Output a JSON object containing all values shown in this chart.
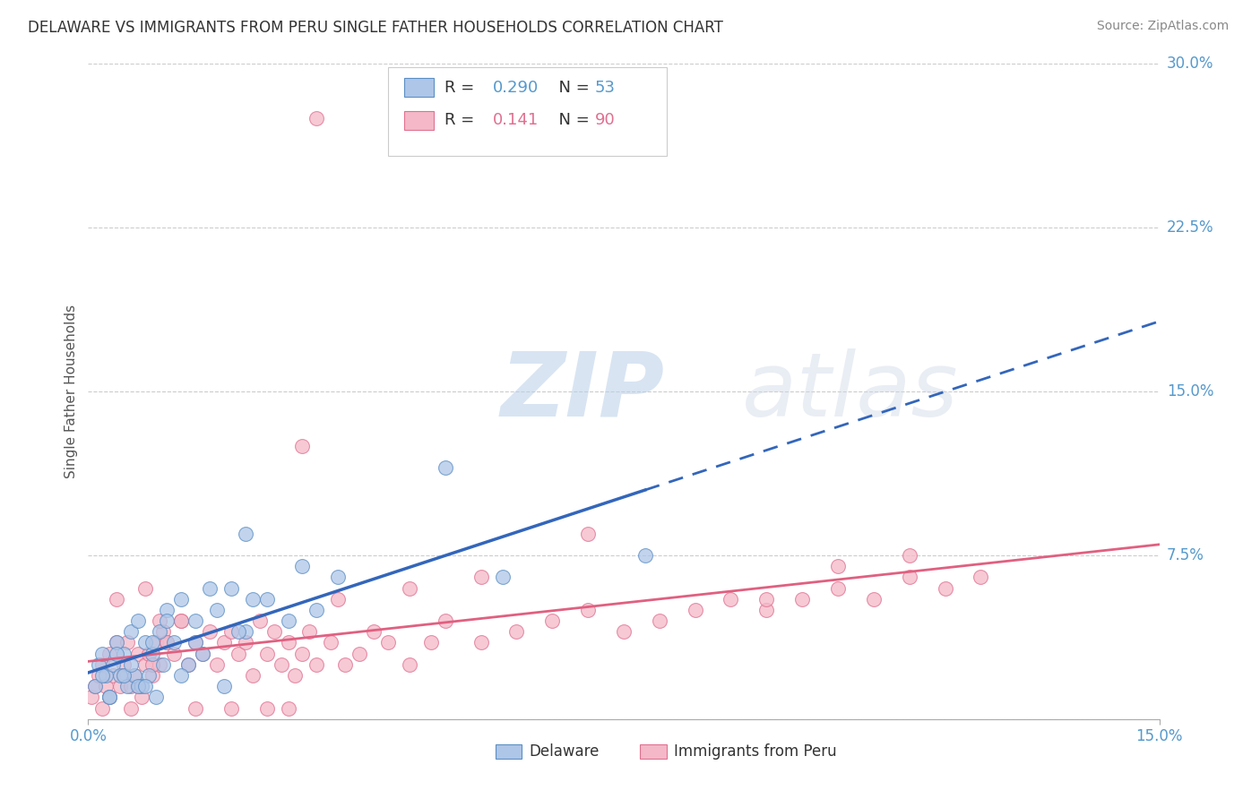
{
  "title": "DELAWARE VS IMMIGRANTS FROM PERU SINGLE FATHER HOUSEHOLDS CORRELATION CHART",
  "source": "Source: ZipAtlas.com",
  "ylabel": "Single Father Households",
  "xlim": [
    0.0,
    15.0
  ],
  "ylim": [
    0.0,
    30.0
  ],
  "ytick_vals": [
    0.0,
    7.5,
    15.0,
    22.5,
    30.0
  ],
  "ytick_labels": [
    "",
    "7.5%",
    "15.0%",
    "22.5%",
    "30.0%"
  ],
  "xtick_vals": [
    0.0,
    15.0
  ],
  "xtick_labels": [
    "0.0%",
    "15.0%"
  ],
  "legend_r_blue": "0.290",
  "legend_n_blue": "53",
  "legend_r_pink": "0.141",
  "legend_n_pink": "90",
  "blue_fill": "#aec6e8",
  "blue_edge": "#5b8ec4",
  "pink_fill": "#f4b8c8",
  "pink_edge": "#e07090",
  "trend_blue_color": "#3366bb",
  "trend_pink_color": "#e06080",
  "grid_color": "#cccccc",
  "watermark_zip": "ZIP",
  "watermark_atlas": "atlas",
  "bg": "#ffffff",
  "blue_x": [
    0.1,
    0.15,
    0.2,
    0.25,
    0.3,
    0.35,
    0.4,
    0.45,
    0.5,
    0.55,
    0.6,
    0.65,
    0.7,
    0.75,
    0.8,
    0.85,
    0.9,
    0.95,
    1.0,
    1.05,
    1.1,
    1.2,
    1.3,
    1.4,
    1.5,
    1.6,
    1.8,
    2.0,
    2.2,
    2.5,
    2.8,
    3.0,
    3.2,
    3.5,
    0.3,
    0.5,
    0.7,
    0.9,
    1.1,
    1.3,
    1.5,
    1.7,
    1.9,
    2.1,
    0.2,
    0.4,
    0.6,
    0.8,
    2.3,
    5.8,
    2.2,
    7.8,
    5.0
  ],
  "blue_y": [
    1.5,
    2.5,
    3.0,
    2.0,
    1.0,
    2.5,
    3.5,
    2.0,
    3.0,
    1.5,
    4.0,
    2.0,
    4.5,
    1.5,
    3.5,
    2.0,
    3.0,
    1.0,
    4.0,
    2.5,
    5.0,
    3.5,
    5.5,
    2.5,
    4.5,
    3.0,
    5.0,
    6.0,
    4.0,
    5.5,
    4.5,
    7.0,
    5.0,
    6.5,
    1.0,
    2.0,
    1.5,
    3.5,
    4.5,
    2.0,
    3.5,
    6.0,
    1.5,
    4.0,
    2.0,
    3.0,
    2.5,
    1.5,
    5.5,
    6.5,
    8.5,
    7.5,
    11.5
  ],
  "pink_x": [
    0.05,
    0.1,
    0.15,
    0.2,
    0.25,
    0.3,
    0.35,
    0.4,
    0.45,
    0.5,
    0.55,
    0.6,
    0.65,
    0.7,
    0.75,
    0.8,
    0.85,
    0.9,
    0.95,
    1.0,
    1.05,
    1.1,
    1.2,
    1.3,
    1.4,
    1.5,
    1.6,
    1.7,
    1.8,
    1.9,
    2.0,
    2.1,
    2.2,
    2.3,
    2.4,
    2.5,
    2.6,
    2.7,
    2.8,
    2.9,
    3.0,
    3.1,
    3.2,
    3.4,
    3.6,
    3.8,
    4.0,
    4.2,
    4.5,
    4.8,
    5.0,
    5.5,
    6.0,
    6.5,
    7.0,
    7.5,
    8.0,
    8.5,
    9.0,
    9.5,
    10.0,
    10.5,
    11.0,
    11.5,
    12.0,
    12.5,
    0.3,
    0.5,
    0.7,
    0.9,
    1.1,
    1.3,
    2.5,
    3.5,
    4.5,
    5.5,
    7.0,
    9.5,
    10.5,
    11.5,
    0.2,
    0.6,
    1.0,
    1.5,
    2.0,
    3.0,
    0.4,
    0.8,
    2.8,
    3.2
  ],
  "pink_y": [
    1.0,
    1.5,
    2.0,
    2.5,
    1.5,
    3.0,
    2.0,
    3.5,
    1.5,
    2.5,
    3.5,
    1.5,
    2.0,
    3.0,
    1.0,
    2.5,
    3.0,
    2.0,
    3.5,
    2.5,
    4.0,
    3.5,
    3.0,
    4.5,
    2.5,
    3.5,
    3.0,
    4.0,
    2.5,
    3.5,
    4.0,
    3.0,
    3.5,
    2.0,
    4.5,
    3.0,
    4.0,
    2.5,
    3.5,
    2.0,
    3.0,
    4.0,
    2.5,
    3.5,
    2.5,
    3.0,
    4.0,
    3.5,
    2.5,
    3.5,
    4.5,
    3.5,
    4.0,
    4.5,
    5.0,
    4.0,
    4.5,
    5.0,
    5.5,
    5.0,
    5.5,
    6.0,
    5.5,
    6.5,
    6.0,
    6.5,
    1.0,
    2.0,
    1.5,
    2.5,
    3.5,
    4.5,
    0.5,
    5.5,
    6.0,
    6.5,
    8.5,
    5.5,
    7.0,
    7.5,
    0.5,
    0.5,
    4.5,
    0.5,
    0.5,
    12.5,
    5.5,
    6.0,
    0.5,
    27.5
  ]
}
